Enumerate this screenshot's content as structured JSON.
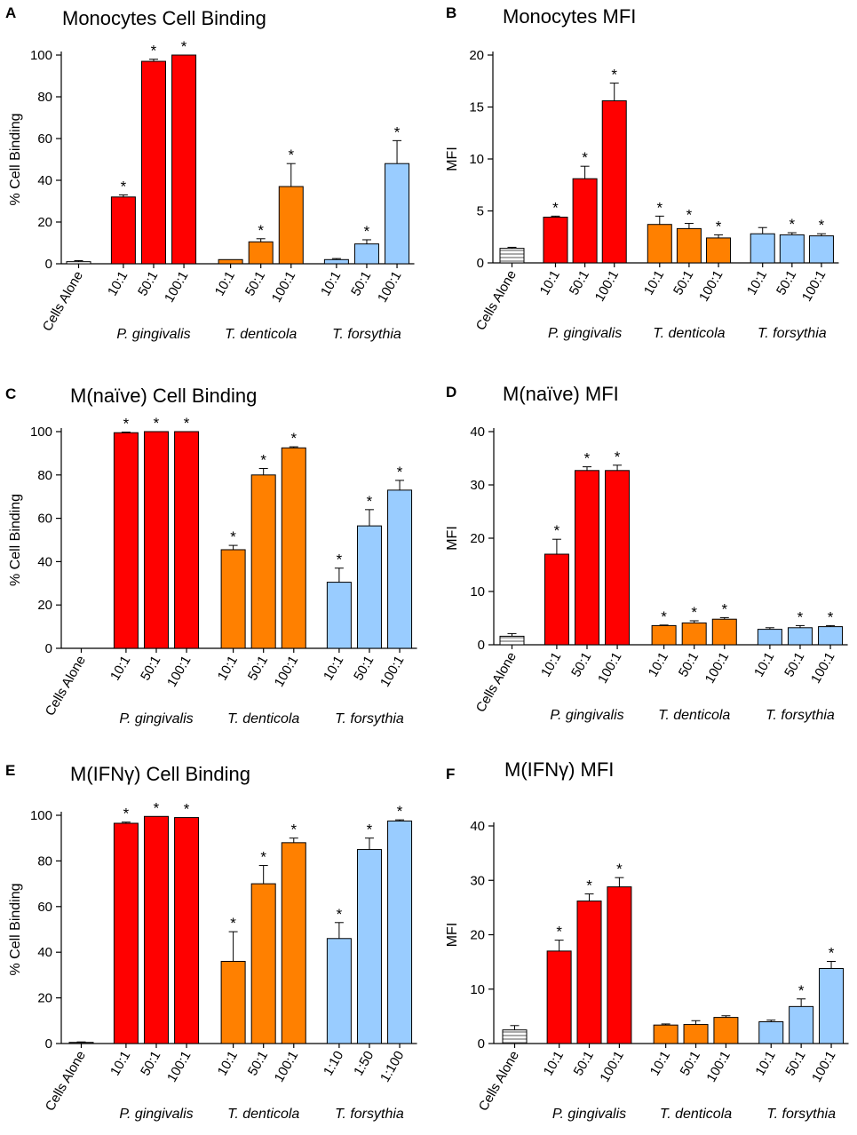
{
  "chart_data": [
    {
      "panel": "A",
      "type": "bar",
      "title": "Monocytes Cell Binding",
      "xlabel": "",
      "ylabel": "% Cell Binding",
      "ylim": [
        0,
        100
      ],
      "yticks": [
        0,
        20,
        40,
        60,
        80,
        100
      ],
      "groups": [
        "P. gingivalis",
        "T. denticola",
        "T. forsythia"
      ],
      "bars": [
        {
          "label": "Cells Alone",
          "group": "Cells Alone",
          "value": 1,
          "error": 0.5,
          "sig": false
        },
        {
          "label": "10:1",
          "group": "P. gingivalis",
          "value": 32,
          "error": 1,
          "sig": true
        },
        {
          "label": "50:1",
          "group": "P. gingivalis",
          "value": 97,
          "error": 1,
          "sig": true
        },
        {
          "label": "100:1",
          "group": "P. gingivalis",
          "value": 100,
          "error": 0,
          "sig": true
        },
        {
          "label": "10:1",
          "group": "T. denticola",
          "value": 2,
          "error": 0,
          "sig": false
        },
        {
          "label": "50:1",
          "group": "T. denticola",
          "value": 10.5,
          "error": 1.5,
          "sig": true
        },
        {
          "label": "100:1",
          "group": "T. denticola",
          "value": 37,
          "error": 11,
          "sig": true
        },
        {
          "label": "10:1",
          "group": "T. forsythia",
          "value": 2,
          "error": 0.5,
          "sig": false
        },
        {
          "label": "50:1",
          "group": "T. forsythia",
          "value": 9.5,
          "error": 2,
          "sig": true
        },
        {
          "label": "100:1",
          "group": "T. forsythia",
          "value": 48,
          "error": 11,
          "sig": true
        }
      ]
    },
    {
      "panel": "B",
      "type": "bar",
      "title": "Monocytes MFI",
      "xlabel": "",
      "ylabel": "MFI",
      "ylim": [
        0,
        20
      ],
      "yticks": [
        0,
        5,
        10,
        15,
        20
      ],
      "groups": [
        "P. gingivalis",
        "T. denticola",
        "T. forsythia"
      ],
      "bars": [
        {
          "label": "Cells Alone",
          "group": "Cells Alone",
          "value": 1.4,
          "error": 0.1,
          "sig": false
        },
        {
          "label": "10:1",
          "group": "P. gingivalis",
          "value": 4.4,
          "error": 0.1,
          "sig": true
        },
        {
          "label": "50:1",
          "group": "P. gingivalis",
          "value": 8.1,
          "error": 1.2,
          "sig": true
        },
        {
          "label": "100:1",
          "group": "P. gingivalis",
          "value": 15.6,
          "error": 1.7,
          "sig": true
        },
        {
          "label": "10:1",
          "group": "T. denticola",
          "value": 3.7,
          "error": 0.8,
          "sig": true
        },
        {
          "label": "50:1",
          "group": "T. denticola",
          "value": 3.3,
          "error": 0.5,
          "sig": true
        },
        {
          "label": "100:1",
          "group": "T. denticola",
          "value": 2.4,
          "error": 0.3,
          "sig": true
        },
        {
          "label": "10:1",
          "group": "T. forsythia",
          "value": 2.8,
          "error": 0.6,
          "sig": false
        },
        {
          "label": "50:1",
          "group": "T. forsythia",
          "value": 2.7,
          "error": 0.2,
          "sig": true
        },
        {
          "label": "100:1",
          "group": "T. forsythia",
          "value": 2.6,
          "error": 0.2,
          "sig": true
        }
      ]
    },
    {
      "panel": "C",
      "type": "bar",
      "title": "M(naïve) Cell Binding",
      "xlabel": "",
      "ylabel": "% Cell Binding",
      "ylim": [
        0,
        100
      ],
      "yticks": [
        0,
        20,
        40,
        60,
        80,
        100
      ],
      "groups": [
        "P. gingivalis",
        "T. denticola",
        "T. forsythia"
      ],
      "bars": [
        {
          "label": "Cells Alone",
          "group": "Cells Alone",
          "value": 0,
          "error": 0,
          "sig": false
        },
        {
          "label": "10:1",
          "group": "P. gingivalis",
          "value": 99.5,
          "error": 0.3,
          "sig": true
        },
        {
          "label": "50:1",
          "group": "P. gingivalis",
          "value": 100,
          "error": 0,
          "sig": true
        },
        {
          "label": "100:1",
          "group": "P. gingivalis",
          "value": 100,
          "error": 0,
          "sig": true
        },
        {
          "label": "10:1",
          "group": "T. denticola",
          "value": 45.5,
          "error": 2,
          "sig": true
        },
        {
          "label": "50:1",
          "group": "T. denticola",
          "value": 80,
          "error": 3,
          "sig": true
        },
        {
          "label": "100:1",
          "group": "T. denticola",
          "value": 92.5,
          "error": 0.5,
          "sig": true
        },
        {
          "label": "10:1",
          "group": "T. forsythia",
          "value": 30.5,
          "error": 6.5,
          "sig": true
        },
        {
          "label": "50:1",
          "group": "T. forsythia",
          "value": 56.5,
          "error": 7.5,
          "sig": true
        },
        {
          "label": "100:1",
          "group": "T. forsythia",
          "value": 73,
          "error": 4.5,
          "sig": true
        }
      ]
    },
    {
      "panel": "D",
      "type": "bar",
      "title": "M(naïve) MFI",
      "xlabel": "",
      "ylabel": "MFI",
      "ylim": [
        0,
        40
      ],
      "yticks": [
        0,
        10,
        20,
        30,
        40
      ],
      "groups": [
        "P. gingivalis",
        "T. denticola",
        "T. forsythia"
      ],
      "bars": [
        {
          "label": "Cells Alone",
          "group": "Cells Alone",
          "value": 1.6,
          "error": 0.5,
          "sig": false
        },
        {
          "label": "10:1",
          "group": "P. gingivalis",
          "value": 17,
          "error": 2.8,
          "sig": true
        },
        {
          "label": "50:1",
          "group": "P. gingivalis",
          "value": 32.7,
          "error": 0.7,
          "sig": true
        },
        {
          "label": "100:1",
          "group": "P. gingivalis",
          "value": 32.7,
          "error": 1,
          "sig": true
        },
        {
          "label": "10:1",
          "group": "T. denticola",
          "value": 3.6,
          "error": 0.1,
          "sig": true
        },
        {
          "label": "50:1",
          "group": "T. denticola",
          "value": 4.1,
          "error": 0.4,
          "sig": true
        },
        {
          "label": "100:1",
          "group": "T. denticola",
          "value": 4.8,
          "error": 0.3,
          "sig": true
        },
        {
          "label": "10:1",
          "group": "T. forsythia",
          "value": 2.9,
          "error": 0.3,
          "sig": false
        },
        {
          "label": "50:1",
          "group": "T. forsythia",
          "value": 3.2,
          "error": 0.4,
          "sig": true
        },
        {
          "label": "100:1",
          "group": "T. forsythia",
          "value": 3.4,
          "error": 0.2,
          "sig": true
        }
      ]
    },
    {
      "panel": "E",
      "type": "bar",
      "title": "M(IFNγ) Cell Binding",
      "xlabel": "",
      "ylabel": "% Cell Binding",
      "ylim": [
        0,
        100
      ],
      "yticks": [
        0,
        20,
        40,
        60,
        80,
        100
      ],
      "groups": [
        "P. gingivalis",
        "T. denticola",
        "T. forsythia"
      ],
      "bars": [
        {
          "label": "Cells Alone",
          "group": "Cells Alone",
          "value": 0.5,
          "error": 0.2,
          "sig": false
        },
        {
          "label": "10:1",
          "group": "P. gingivalis",
          "value": 96.5,
          "error": 0.5,
          "sig": true
        },
        {
          "label": "50:1",
          "group": "P. gingivalis",
          "value": 99.5,
          "error": 0,
          "sig": true
        },
        {
          "label": "100:1",
          "group": "P. gingivalis",
          "value": 99,
          "error": 0,
          "sig": true
        },
        {
          "label": "10:1",
          "group": "T. denticola",
          "value": 36,
          "error": 13,
          "sig": true
        },
        {
          "label": "50:1",
          "group": "T. denticola",
          "value": 70,
          "error": 8,
          "sig": true
        },
        {
          "label": "100:1",
          "group": "T. denticola",
          "value": 88,
          "error": 2,
          "sig": true
        },
        {
          "label": "1:10",
          "group": "T. forsythia",
          "value": 46,
          "error": 7,
          "sig": true
        },
        {
          "label": "1:50",
          "group": "T. forsythia",
          "value": 85,
          "error": 5,
          "sig": true
        },
        {
          "label": "1:100",
          "group": "T. forsythia",
          "value": 97.5,
          "error": 0.5,
          "sig": true
        }
      ]
    },
    {
      "panel": "F",
      "type": "bar",
      "title": "M(IFNγ) MFI",
      "xlabel": "",
      "ylabel": "MFI",
      "ylim": [
        0,
        40
      ],
      "yticks": [
        0,
        10,
        20,
        30,
        40
      ],
      "groups": [
        "P. gingivalis",
        "T. denticola",
        "T. forsythia"
      ],
      "bars": [
        {
          "label": "Cells Alone",
          "group": "Cells Alone",
          "value": 2.5,
          "error": 0.8,
          "sig": false
        },
        {
          "label": "10:1",
          "group": "P. gingivalis",
          "value": 17,
          "error": 2,
          "sig": true
        },
        {
          "label": "50:1",
          "group": "P. gingivalis",
          "value": 26.2,
          "error": 1.3,
          "sig": true
        },
        {
          "label": "100:1",
          "group": "P. gingivalis",
          "value": 28.8,
          "error": 1.7,
          "sig": true
        },
        {
          "label": "10:1",
          "group": "T. denticola",
          "value": 3.4,
          "error": 0.2,
          "sig": false
        },
        {
          "label": "50:1",
          "group": "T. denticola",
          "value": 3.5,
          "error": 0.7,
          "sig": false
        },
        {
          "label": "100:1",
          "group": "T. denticola",
          "value": 4.8,
          "error": 0.3,
          "sig": false
        },
        {
          "label": "10:1",
          "group": "T. forsythia",
          "value": 4,
          "error": 0.3,
          "sig": false
        },
        {
          "label": "50:1",
          "group": "T. forsythia",
          "value": 6.8,
          "error": 1.4,
          "sig": true
        },
        {
          "label": "100:1",
          "group": "T. forsythia",
          "value": 13.8,
          "error": 1.3,
          "sig": true
        }
      ]
    }
  ],
  "labels": {
    "cells_alone": "Cells Alone",
    "significance_marker": "*"
  },
  "colors": {
    "P. gingivalis": "#ff0000",
    "T. denticola": "#ff8000",
    "T. forsythia": "#99ccff",
    "Cells Alone": "#ffffff",
    "hatch": "#555555",
    "axis": "#000000"
  }
}
